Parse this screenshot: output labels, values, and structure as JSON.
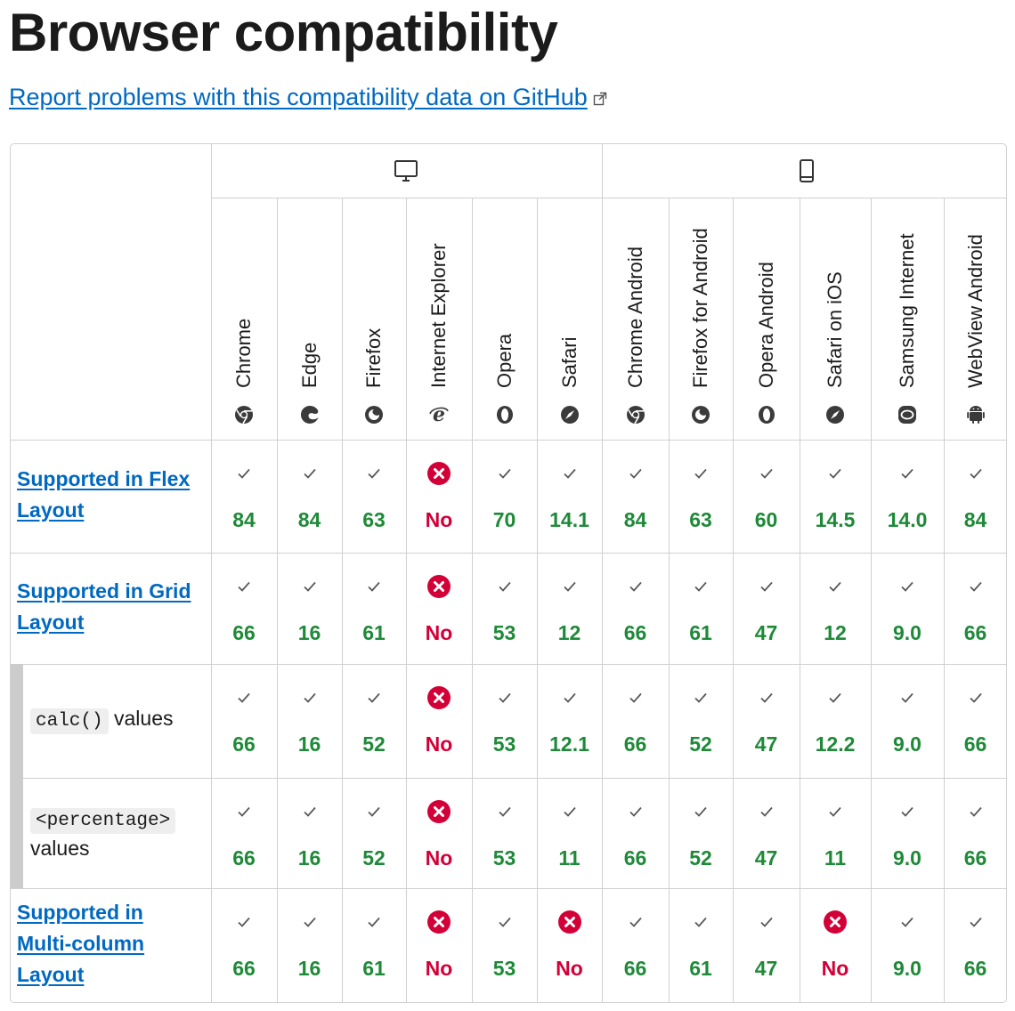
{
  "page": {
    "title": "Browser compatibility",
    "report_link": "Report problems with this compatibility data on GitHub"
  },
  "colors": {
    "link": "#0069c2",
    "yes": "#1e8a38",
    "no": "#d30038",
    "no_icon_bg": "#d30038"
  },
  "platforms": [
    {
      "name": "desktop",
      "icon": "desktop-icon"
    },
    {
      "name": "mobile",
      "icon": "mobile-icon"
    }
  ],
  "browsers": [
    {
      "name": "Chrome",
      "icon": "chrome-icon"
    },
    {
      "name": "Edge",
      "icon": "edge-icon"
    },
    {
      "name": "Firefox",
      "icon": "firefox-icon"
    },
    {
      "name": "Internet Explorer",
      "icon": "ie-icon"
    },
    {
      "name": "Opera",
      "icon": "opera-icon"
    },
    {
      "name": "Safari",
      "icon": "safari-icon"
    },
    {
      "name": "Chrome Android",
      "icon": "chrome-icon"
    },
    {
      "name": "Firefox for Android",
      "icon": "firefox-icon"
    },
    {
      "name": "Opera Android",
      "icon": "opera-icon"
    },
    {
      "name": "Safari on iOS",
      "icon": "safari-icon"
    },
    {
      "name": "Samsung Internet",
      "icon": "samsung-icon"
    },
    {
      "name": "WebView Android",
      "icon": "android-icon"
    }
  ],
  "features": [
    {
      "label": "Supported in Flex Layout",
      "link": true,
      "versions": [
        "84",
        "84",
        "63",
        "No",
        "70",
        "14.1",
        "84",
        "63",
        "60",
        "14.5",
        "14.0",
        "84"
      ]
    },
    {
      "label": "Supported in Grid Layout",
      "link": true,
      "versions": [
        "66",
        "16",
        "61",
        "No",
        "53",
        "12",
        "66",
        "61",
        "47",
        "12",
        "9.0",
        "66"
      ]
    },
    {
      "label": "values",
      "code": "calc()",
      "sub": true,
      "versions": [
        "66",
        "16",
        "52",
        "No",
        "53",
        "12.1",
        "66",
        "52",
        "47",
        "12.2",
        "9.0",
        "66"
      ]
    },
    {
      "label": "values",
      "code": "<percentage>",
      "sub": true,
      "versions": [
        "66",
        "16",
        "52",
        "No",
        "53",
        "11",
        "66",
        "52",
        "47",
        "11",
        "9.0",
        "66"
      ]
    },
    {
      "label": "Supported in Multi-column Layout",
      "link": true,
      "versions": [
        "66",
        "16",
        "61",
        "No",
        "53",
        "No",
        "66",
        "61",
        "47",
        "No",
        "9.0",
        "66"
      ]
    }
  ]
}
